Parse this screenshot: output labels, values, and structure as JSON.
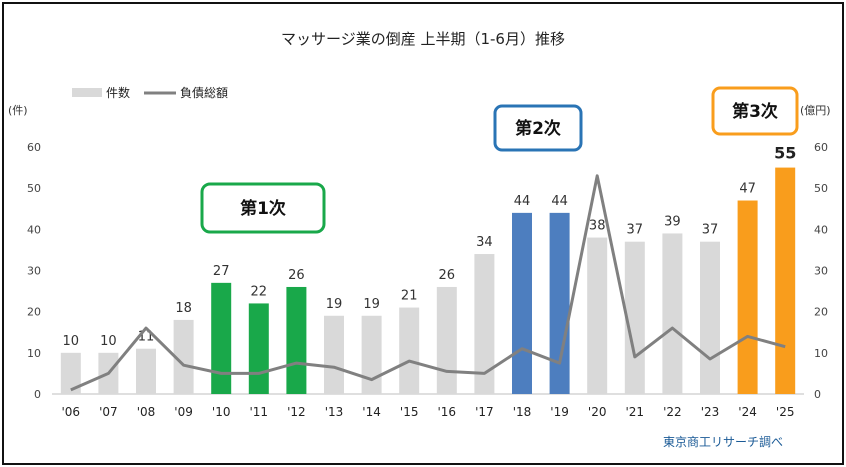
{
  "chart_data": {
    "type": "bar",
    "title": "マッサージ業の倒産 上半期（1-6月）推移",
    "categories": [
      "'06",
      "'07",
      "'08",
      "'09",
      "'10",
      "'11",
      "'12",
      "'13",
      "'14",
      "'15",
      "'16",
      "'17",
      "'18",
      "'19",
      "'20",
      "'21",
      "'22",
      "'23",
      "'24",
      "'25"
    ],
    "series": [
      {
        "name": "件数",
        "kind": "bar",
        "axis": "left",
        "values": [
          10,
          10,
          11,
          18,
          27,
          22,
          26,
          19,
          19,
          21,
          26,
          34,
          44,
          44,
          38,
          37,
          39,
          37,
          47,
          55
        ],
        "labels": [
          "10",
          "10",
          "11",
          "18",
          "27",
          "22",
          "26",
          "19",
          "19",
          "21",
          "26",
          "34",
          "44",
          "44",
          "38",
          "37",
          "39",
          "37",
          "47",
          "55"
        ]
      },
      {
        "name": "負債総額",
        "kind": "line",
        "axis": "right",
        "values": [
          1,
          5,
          16,
          7,
          5,
          5,
          7.5,
          6.5,
          3.5,
          8,
          5.5,
          5,
          11,
          7.5,
          53,
          9,
          16,
          8.5,
          14,
          11.5
        ]
      }
    ],
    "y_left": {
      "label": "(件)",
      "min": 0,
      "max": 60,
      "ticks": [
        "0",
        "10",
        "20",
        "30",
        "40",
        "50",
        "60"
      ]
    },
    "y_right": {
      "label": "(億円)",
      "min": 0,
      "max": 60,
      "ticks": [
        "0",
        "10",
        "20",
        "30",
        "40",
        "50",
        "60"
      ]
    },
    "colors": {
      "default_bar": "#d9d9d9",
      "phase1": "#19a84a",
      "phase2": "#4d7ebf",
      "phase3": "#f99d1c",
      "line": "#808080"
    },
    "phases": [
      {
        "label": "第1次",
        "color": "#19a84a",
        "start": 4,
        "end": 6
      },
      {
        "label": "第2次",
        "color": "#2a74b5",
        "start": 12,
        "end": 13
      },
      {
        "label": "第3次",
        "color": "#f99d1c",
        "start": 18,
        "end": 19
      }
    ],
    "legend": [
      {
        "label": "件数",
        "kind": "bar"
      },
      {
        "label": "負債総額",
        "kind": "line"
      }
    ],
    "source": "東京商工リサーチ調べ"
  }
}
